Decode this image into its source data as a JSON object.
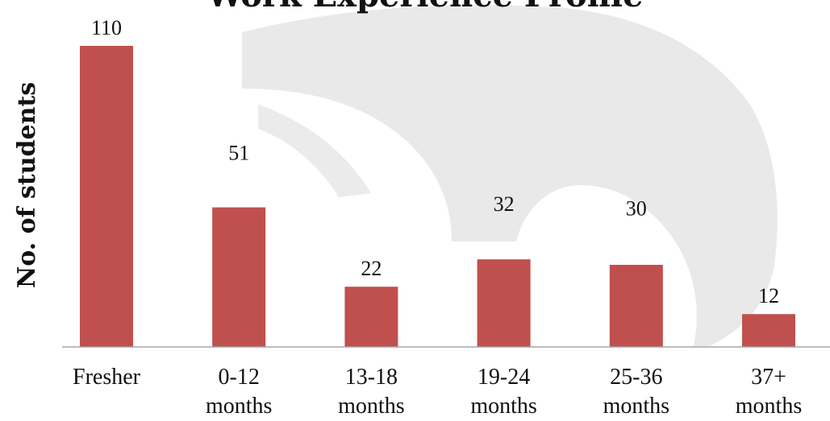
{
  "chart_data": {
    "type": "bar",
    "title": "Work Experience Profile",
    "ylabel": "No. of students",
    "xlabel": "",
    "categories": [
      [
        "Fresher"
      ],
      [
        "0-12",
        "months"
      ],
      [
        "13-18",
        "months"
      ],
      [
        "19-24",
        "months"
      ],
      [
        "25-36",
        "months"
      ],
      [
        "37+",
        "months"
      ]
    ],
    "values": [
      110,
      51,
      22,
      32,
      30,
      12
    ],
    "data_labels": [
      "110",
      "51",
      "22",
      "32",
      "30",
      "12"
    ],
    "ylim": [
      0,
      110
    ],
    "grid": false,
    "legend": "none",
    "bar_color": "#c0504d",
    "axis_color": "#a6a6a6"
  }
}
